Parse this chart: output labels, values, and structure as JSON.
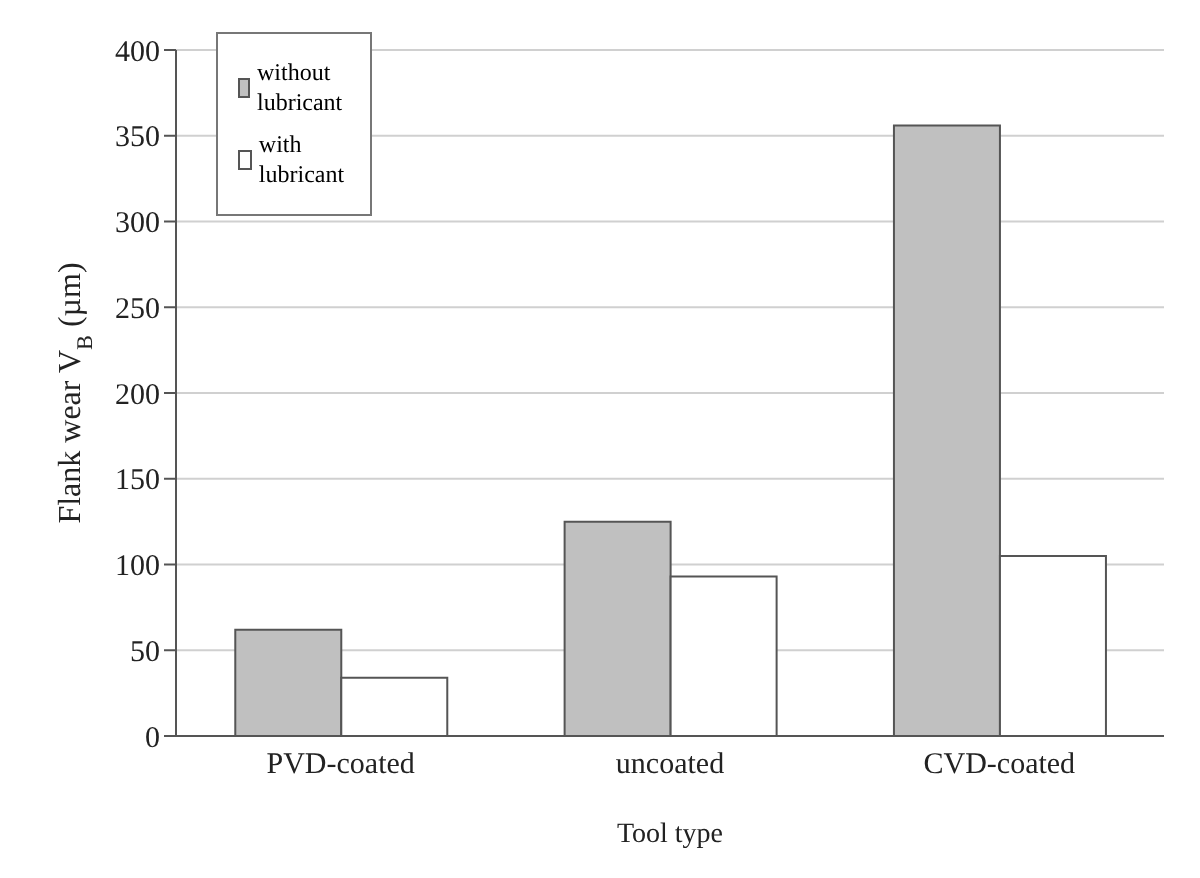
{
  "chart_data": {
    "type": "bar",
    "xlabel": "Tool type",
    "ylabel": "Flank wear V$_{B}$ (µm)",
    "categories": [
      "PVD-coated",
      "uncoated",
      "CVD-coated"
    ],
    "series": [
      {
        "name": "without lubricant",
        "color": "#c0c0c0",
        "values": [
          62,
          125,
          356
        ]
      },
      {
        "name": "with lubricant",
        "color": "#ffffff",
        "values": [
          34,
          93,
          105
        ]
      }
    ],
    "ylim": [
      0,
      400
    ],
    "yticks": [
      0,
      50,
      100,
      150,
      200,
      250,
      300,
      350,
      400
    ],
    "grid": "y",
    "legend": "top left"
  }
}
